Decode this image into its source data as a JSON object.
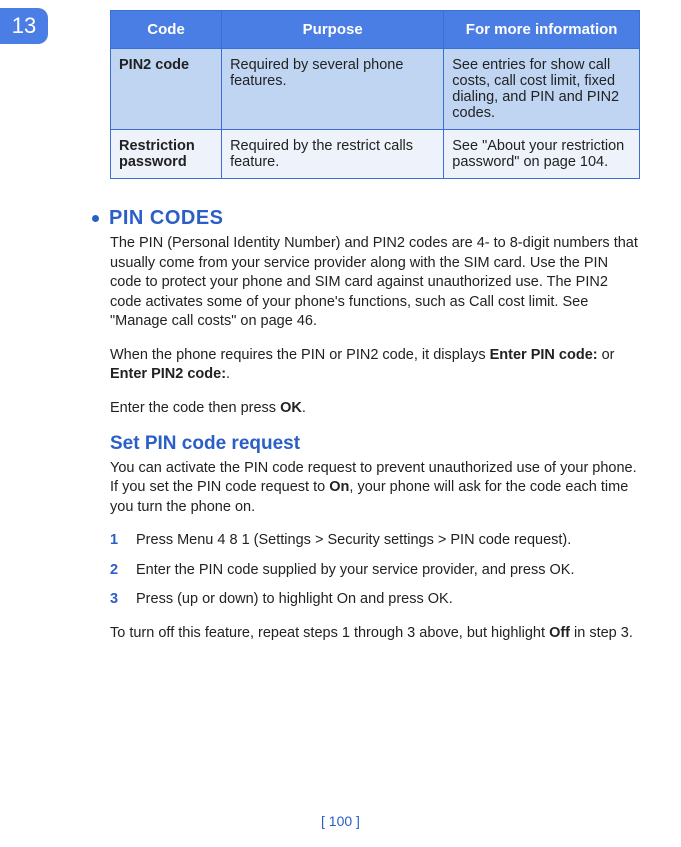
{
  "chapter_tab": "13",
  "table": {
    "headers": {
      "code": "Code",
      "purpose": "Purpose",
      "info": "For more information"
    },
    "rows": [
      {
        "code": "PIN2 code",
        "purpose": "Required by several phone features.",
        "info": "See entries for show call costs, call cost limit, fixed dialing, and PIN and PIN2 codes."
      },
      {
        "code": "Restriction password",
        "purpose": "Required by the restrict calls feature.",
        "info": "See \"About your restriction password\" on page 104."
      }
    ]
  },
  "pin_section": {
    "title": "PIN CODES",
    "p1": "The PIN (Personal Identity Number) and PIN2 codes are 4- to 8-digit numbers that usually come from your service provider along with the SIM card. Use the PIN code to protect your phone and SIM card against unauthorized use. The PIN2 code activates some of your phone's functions, such as Call cost limit. See \"Manage call costs\" on page 46.",
    "p2_pre": "When the phone requires the PIN or PIN2 code, it displays ",
    "p2_b1": "Enter PIN code:",
    "p2_mid": " or ",
    "p2_b2": "Enter PIN2 code:",
    "p2_post": ".",
    "p3_pre": "Enter the code then press ",
    "p3_b": "OK",
    "p3_post": "."
  },
  "set_pin": {
    "title": "Set PIN code request",
    "intro_pre": "You can activate the PIN code request to prevent unauthorized use of your phone. If you set the PIN code request to ",
    "intro_on": "On",
    "intro_post": ", your phone will ask for the code each time you turn the phone on.",
    "steps": [
      {
        "num": "1",
        "pre": "Press ",
        "b1": "Menu",
        "mid1": " 4 8 1 (",
        "b2": "Settings",
        "mid2": " > ",
        "b3": "Security settings",
        "mid3": " > ",
        "b4": "PIN code request",
        "post": ")."
      },
      {
        "num": "2",
        "pre": "Enter the PIN code supplied by your service provider, and press ",
        "b1": "OK",
        "post": "."
      },
      {
        "num": "3",
        "pre": "Press (up or down) to highlight ",
        "b1": "On",
        "mid1": " and press ",
        "b2": "OK",
        "post": "."
      }
    ],
    "outro_pre": "To turn off this feature, repeat steps 1 through 3 above, but highlight ",
    "outro_off": "Off",
    "outro_post": " in step 3."
  },
  "page_number": "[ 100 ]"
}
